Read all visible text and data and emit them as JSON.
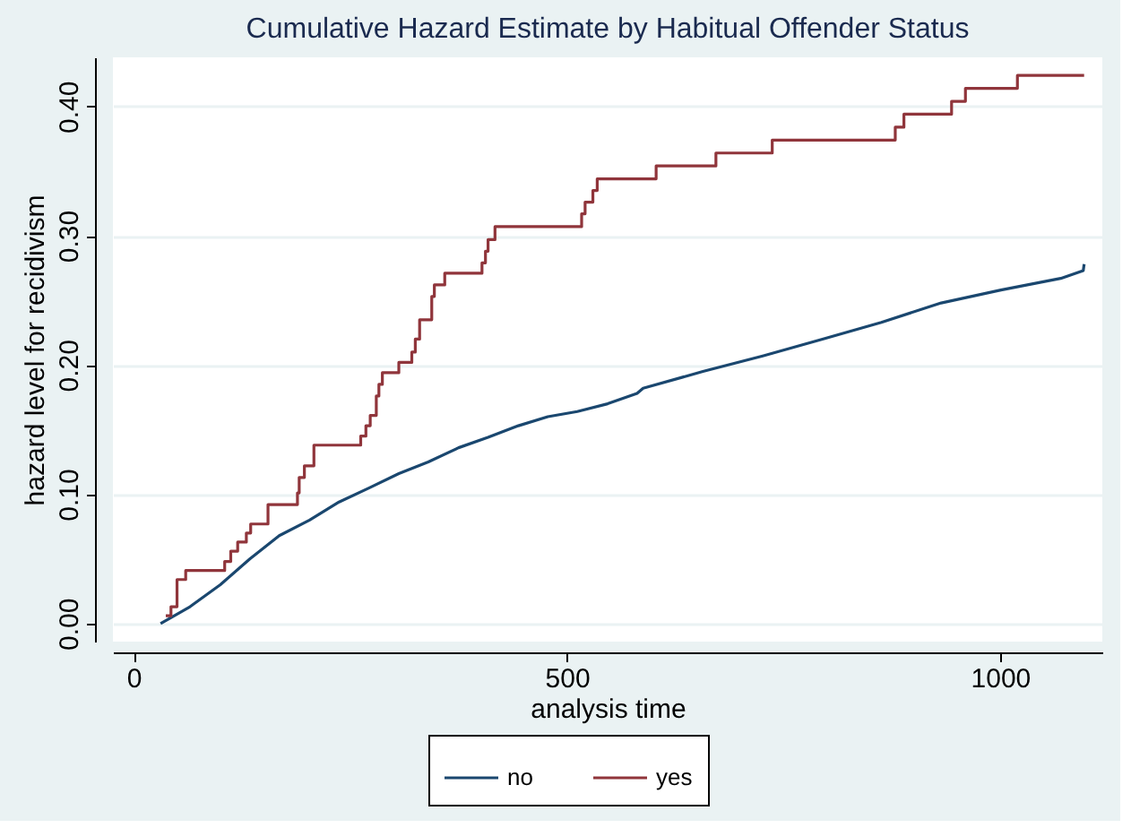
{
  "chart_data": {
    "type": "line",
    "title": "Cumulative Hazard Estimate by Habitual Offender Status",
    "xlabel": "analysis time",
    "ylabel": "hazard level for recidivism",
    "xlim": [
      -24,
      1118
    ],
    "xticks": [
      0,
      500,
      1000
    ],
    "ylim": [
      -0.014,
      0.438
    ],
    "yticks": [
      {
        "value": 0,
        "label": "0.00"
      },
      {
        "value": 0.1,
        "label": "0.10"
      },
      {
        "value": 0.2,
        "label": "0.20"
      },
      {
        "value": 0.3,
        "label": "0.30"
      },
      {
        "value": 0.4,
        "label": "0.40"
      }
    ],
    "grid": "y",
    "legend": "bottom",
    "series": [
      {
        "name": "no",
        "type": "line",
        "color": "#1a476f",
        "x": [
          31,
          65,
          100,
          134,
          168,
          203,
          237,
          272,
          306,
          340,
          375,
          409,
          444,
          478,
          512,
          547,
          581,
          588,
          657,
          726,
          795,
          863,
          932,
          1001,
          1070,
          1096,
          1097
        ],
        "values": [
          0,
          0.013,
          0.03,
          0.05,
          0.068,
          0.08,
          0.094,
          0.105,
          0.116,
          0.125,
          0.136,
          0.144,
          0.153,
          0.16,
          0.164,
          0.17,
          0.178,
          0.182,
          0.195,
          0.207,
          0.22,
          0.233,
          0.248,
          0.258,
          0.267,
          0.273,
          0.278
        ]
      },
      {
        "name": "yes",
        "type": "step",
        "color": "#90353b",
        "x": [
          37,
          43,
          50,
          60,
          105,
          112,
          120,
          130,
          135,
          155,
          189,
          191,
          197,
          208,
          262,
          268,
          273,
          280,
          283,
          287,
          306,
          321,
          325,
          330,
          344,
          347,
          359,
          402,
          406,
          409,
          417,
          517,
          521,
          530,
          535,
          603,
          672,
          737,
          879,
          889,
          944,
          960,
          1020,
          1097
        ],
        "values": [
          0.006,
          0.013,
          0.034,
          0.041,
          0.048,
          0.056,
          0.063,
          0.07,
          0.077,
          0.092,
          0.101,
          0.113,
          0.122,
          0.138,
          0.145,
          0.153,
          0.161,
          0.176,
          0.185,
          0.194,
          0.202,
          0.21,
          0.22,
          0.235,
          0.253,
          0.262,
          0.271,
          0.279,
          0.288,
          0.297,
          0.307,
          0.317,
          0.326,
          0.335,
          0.344,
          0.354,
          0.364,
          0.374,
          0.384,
          0.394,
          0.404,
          0.414,
          0.424,
          0.424
        ]
      }
    ]
  }
}
